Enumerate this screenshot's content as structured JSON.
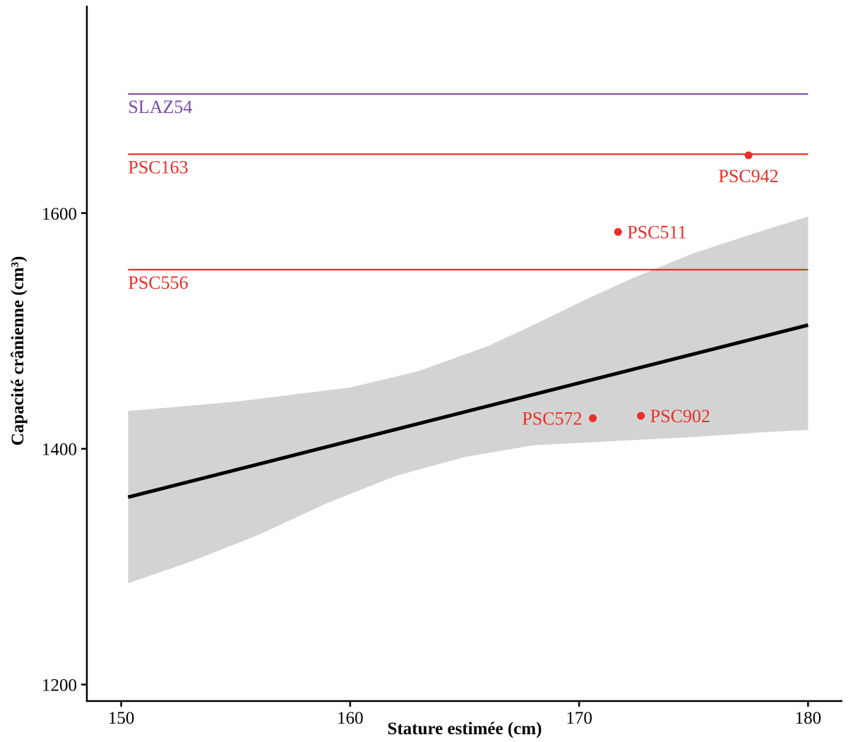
{
  "chart_data": {
    "type": "scatter",
    "title": "",
    "xlabel": "Stature estimée (cm)",
    "ylabel": "Capacité crânienne (cm³)",
    "xlim": [
      148.5,
      181.5
    ],
    "ylim": [
      1186,
      1776
    ],
    "x_ticks": [
      150,
      160,
      170,
      180
    ],
    "y_ticks": [
      1200,
      1400,
      1600
    ],
    "grid": false,
    "regression": {
      "line": [
        [
          150.3,
          1359
        ],
        [
          180,
          1505
        ]
      ],
      "ci_upper": [
        [
          150.3,
          1432
        ],
        [
          155,
          1440
        ],
        [
          160,
          1452
        ],
        [
          163,
          1466
        ],
        [
          166,
          1487
        ],
        [
          168,
          1505
        ],
        [
          170,
          1524
        ],
        [
          172,
          1542
        ],
        [
          175,
          1566
        ],
        [
          178,
          1585
        ],
        [
          180,
          1597
        ]
      ],
      "ci_lower": [
        [
          150.3,
          1286
        ],
        [
          153,
          1304
        ],
        [
          156,
          1327
        ],
        [
          159,
          1354
        ],
        [
          162,
          1377
        ],
        [
          165,
          1393
        ],
        [
          168,
          1403
        ],
        [
          172,
          1407
        ],
        [
          175,
          1410
        ],
        [
          178,
          1414
        ],
        [
          180,
          1416
        ]
      ],
      "line_color": "#000000",
      "band_color": "#d3d3d3"
    },
    "reference_lines": [
      {
        "name": "SLAZ54",
        "y": 1701,
        "x_start": 150.3,
        "x_end": 180,
        "color": "#7b4aa8"
      },
      {
        "name": "PSC163",
        "y": 1650,
        "x_start": 150.3,
        "x_end": 180,
        "color": "#e8302a"
      },
      {
        "name": "PSC556",
        "y": 1552,
        "x_start": 150.3,
        "x_end": 180,
        "color": "#e8302a"
      }
    ],
    "points": [
      {
        "name": "PSC942",
        "x": 177.4,
        "y": 1649,
        "color": "#e8302a",
        "label_pos": "below"
      },
      {
        "name": "PSC511",
        "x": 171.7,
        "y": 1584,
        "color": "#e8302a",
        "label_pos": "right"
      },
      {
        "name": "PSC572",
        "x": 170.6,
        "y": 1426,
        "color": "#e8302a",
        "label_pos": "left"
      },
      {
        "name": "PSC902",
        "x": 172.7,
        "y": 1428,
        "color": "#e8302a",
        "label_pos": "right"
      }
    ]
  }
}
